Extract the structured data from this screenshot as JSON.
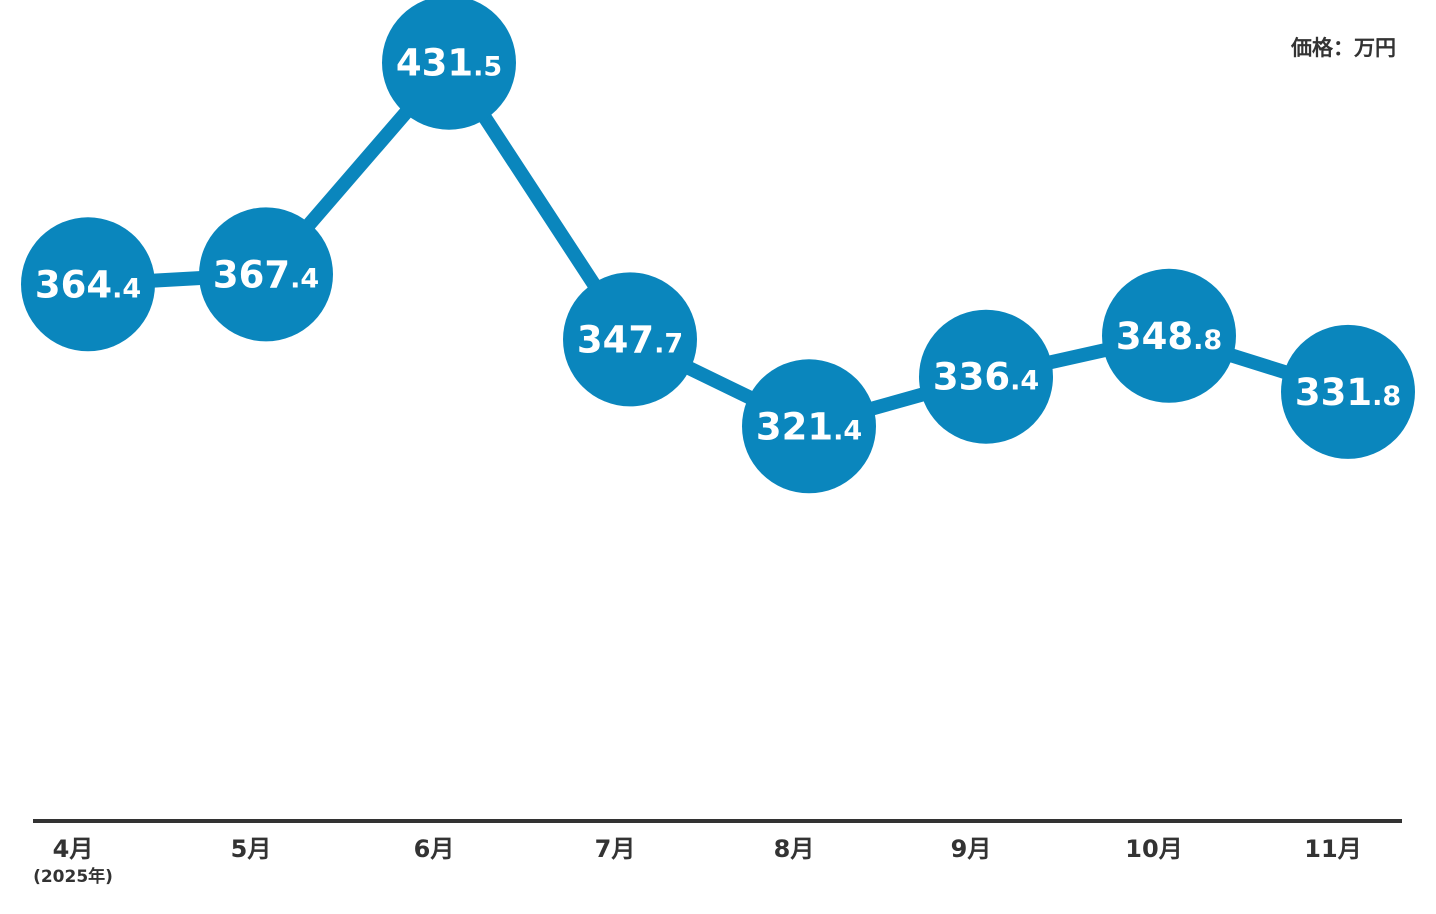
{
  "chart_data": {
    "type": "line",
    "unit_label": "価格：万円",
    "categories": [
      "4月",
      "5月",
      "6月",
      "7月",
      "8月",
      "9月",
      "10月",
      "11月"
    ],
    "first_category_note": "(2025年)",
    "series": [
      {
        "values": [
          364.4,
          367.4,
          431.5,
          347.7,
          321.4,
          336.4,
          348.8,
          331.8
        ]
      }
    ],
    "value_labels": [
      {
        "int": "364",
        "dec": ".4"
      },
      {
        "int": "367",
        "dec": ".4"
      },
      {
        "int": "431",
        "dec": ".5"
      },
      {
        "int": "347",
        "dec": ".7"
      },
      {
        "int": "321",
        "dec": ".4"
      },
      {
        "int": "336",
        "dec": ".4"
      },
      {
        "int": "348",
        "dec": ".8"
      },
      {
        "int": "331",
        "dec": ".8"
      }
    ],
    "colors": {
      "series": "#0a86bd",
      "axis": "#333333",
      "label_text": "#ffffff"
    },
    "grid": false,
    "legend": "none"
  }
}
